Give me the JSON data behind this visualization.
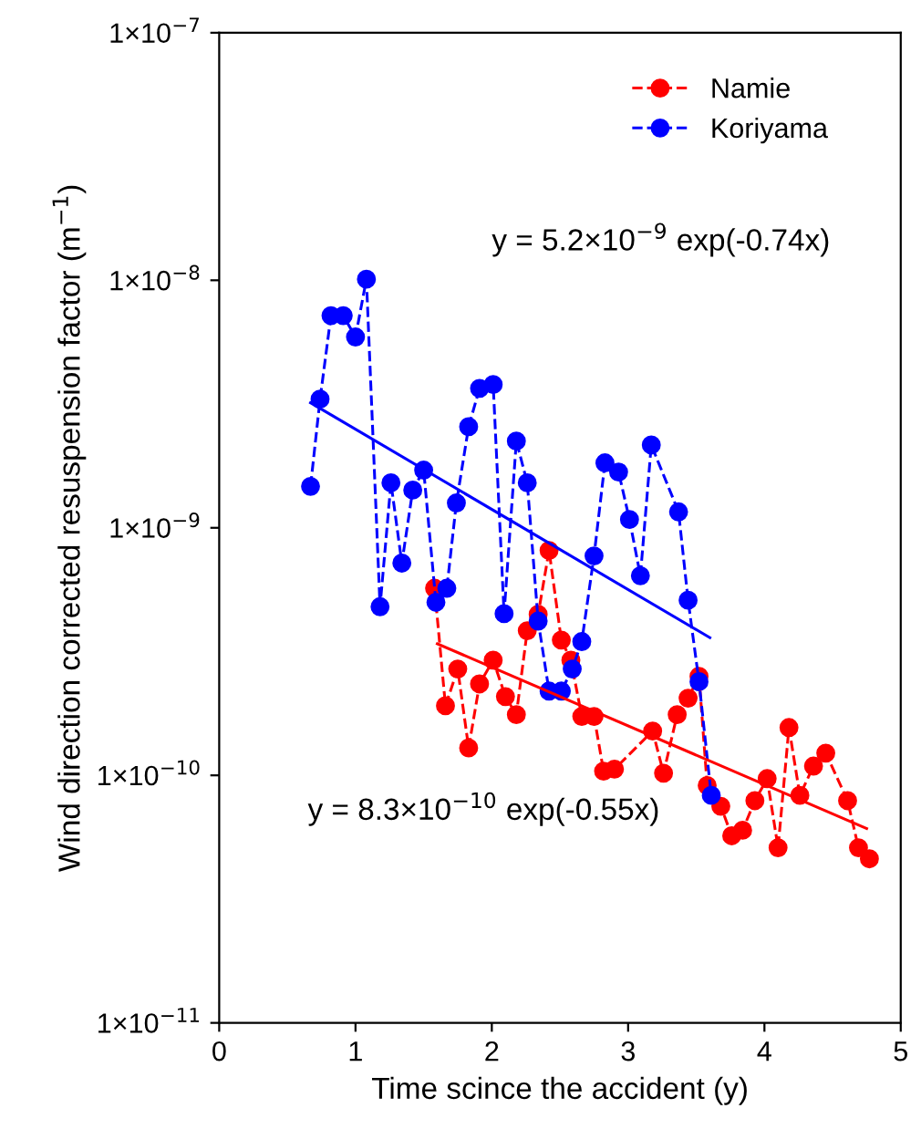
{
  "chart_data": {
    "type": "line",
    "xlabel": "Time scince the accident (y)",
    "ylabel": "Wind direction corrected resuspension factor (m$^{−1}$)",
    "xlim": [
      0,
      5
    ],
    "xticks": [
      0,
      1,
      2,
      3,
      4,
      5
    ],
    "ylim": [
      1e-11,
      1e-07
    ],
    "log": true,
    "yticks": [
      {
        "value": 1e-11,
        "label": "1×10$^{−11}$"
      },
      {
        "value": 1e-10,
        "label": "1×10$^{−10}$"
      },
      {
        "value": 1e-09,
        "label": "1×10$^{−9}$"
      },
      {
        "value": 1e-08,
        "label": "1×10$^{−8}$"
      },
      {
        "value": 1e-07,
        "label": "1×10$^{−7}$"
      }
    ],
    "grid": false,
    "legend": "top right",
    "marker": "circle",
    "line_style": "dashed",
    "series": [
      {
        "name": "Namie",
        "color": "#ff0000",
        "x": [
          1.58,
          1.66,
          1.75,
          1.83,
          1.91,
          2.01,
          2.1,
          2.18,
          2.26,
          2.34,
          2.42,
          2.51,
          2.58,
          2.66,
          2.75,
          2.82,
          2.9,
          3.18,
          3.26,
          3.36,
          3.44,
          3.52,
          3.58,
          3.68,
          3.76,
          3.84,
          3.93,
          4.02,
          4.1,
          4.18,
          4.26,
          4.36,
          4.45,
          4.61,
          4.69,
          4.77
        ],
        "values": [
          5.7e-10,
          1.91e-10,
          2.69e-10,
          1.29e-10,
          2.34e-10,
          2.92e-10,
          2.08e-10,
          1.76e-10,
          3.84e-10,
          4.47e-10,
          8.1e-10,
          3.52e-10,
          2.92e-10,
          1.73e-10,
          1.73e-10,
          1.04e-10,
          1.06e-10,
          1.51e-10,
          1.02e-10,
          1.76e-10,
          2.05e-10,
          2.51e-10,
          9.1e-11,
          7.5e-11,
          5.7e-11,
          6e-11,
          7.9e-11,
          9.7e-11,
          5.1e-11,
          1.56e-10,
          8.3e-11,
          1.09e-10,
          1.23e-10,
          7.9e-11,
          5.1e-11,
          4.6e-11
        ]
      },
      {
        "name": "Koriyama",
        "color": "#0000ff",
        "x": [
          0.67,
          0.74,
          0.82,
          0.91,
          1.0,
          1.08,
          1.18,
          1.26,
          1.34,
          1.42,
          1.5,
          1.59,
          1.67,
          1.74,
          1.83,
          1.91,
          2.01,
          2.09,
          2.18,
          2.26,
          2.34,
          2.42,
          2.51,
          2.59,
          2.66,
          2.75,
          2.83,
          2.93,
          3.01,
          3.09,
          3.17,
          3.37,
          3.44,
          3.52,
          3.61
        ],
        "values": [
          1.47e-09,
          3.31e-09,
          7.2e-09,
          7.2e-09,
          5.9e-09,
          1.01e-08,
          4.8e-10,
          1.52e-09,
          7.2e-10,
          1.42e-09,
          1.71e-09,
          5e-10,
          5.7e-10,
          1.26e-09,
          2.56e-09,
          3.66e-09,
          3.79e-09,
          4.5e-10,
          2.24e-09,
          1.52e-09,
          4.2e-10,
          2.19e-10,
          2.19e-10,
          2.69e-10,
          3.47e-10,
          7.7e-10,
          1.83e-09,
          1.68e-09,
          1.08e-09,
          6.4e-10,
          2.16e-09,
          1.16e-09,
          5.1e-10,
          2.39e-10,
          8.3e-11
        ]
      },
      {
        "color": "#0000ff",
        "marker": "none",
        "line_style": "solid",
        "x": [
          0.67,
          3.6
        ],
        "values": [
          3.2e-09,
          3.6e-10
        ]
      },
      {
        "color": "#ff0000",
        "marker": "none",
        "line_style": "solid",
        "x": [
          1.6,
          4.75
        ],
        "values": [
          3.4e-10,
          6.1e-11
        ]
      }
    ],
    "annotations": [
      "y = 5.2×10$^{−9}$ exp(-0.74x)",
      "y = 8.3×10$^{−10}$ exp(-0.55x)"
    ]
  }
}
